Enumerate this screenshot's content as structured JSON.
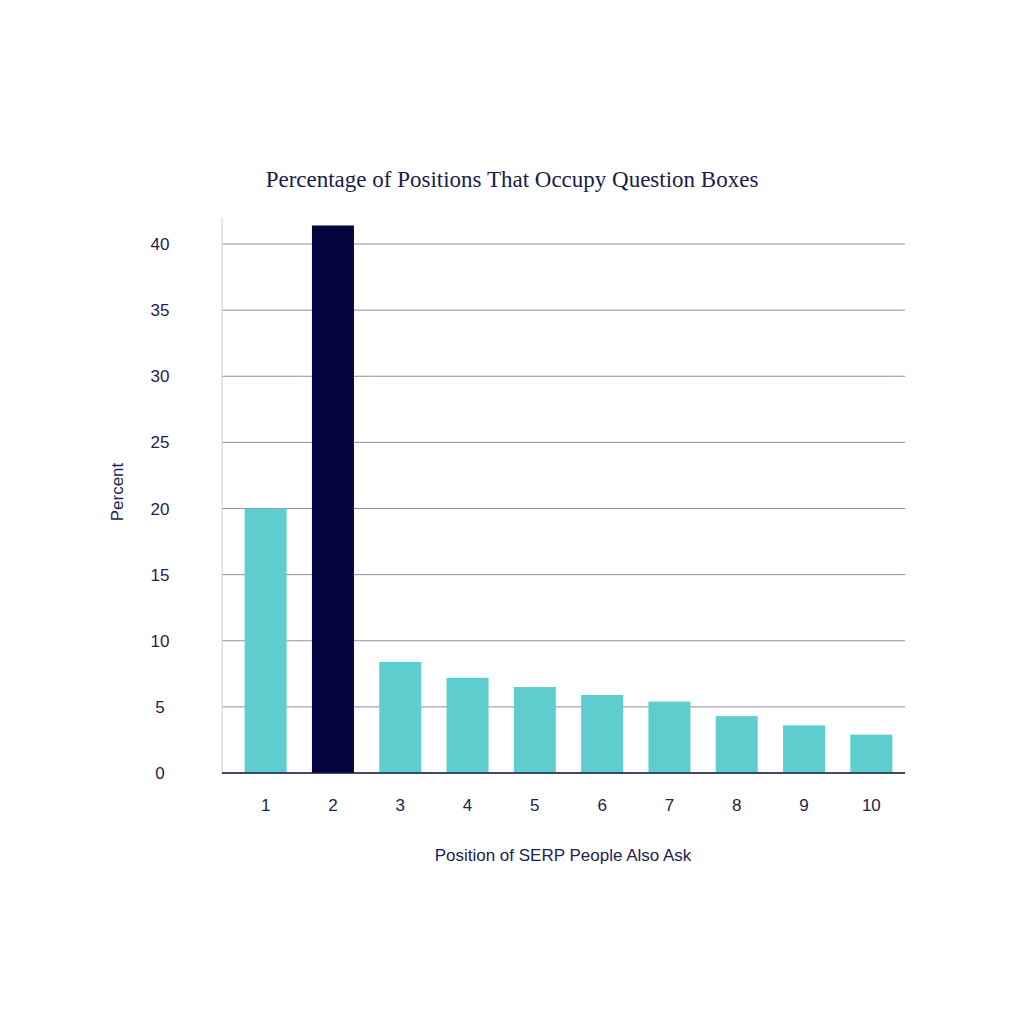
{
  "chart_data": {
    "type": "bar",
    "title": "Percentage of Positions That Occupy Question Boxes",
    "x_label": "Position of SERP People Also Ask",
    "y_label": "Percent",
    "categories": [
      "1",
      "2",
      "3",
      "4",
      "5",
      "6",
      "7",
      "8",
      "9",
      "10"
    ],
    "values": [
      20,
      41.4,
      8.4,
      7.2,
      6.5,
      5.9,
      5.4,
      4.3,
      3.6,
      2.9
    ],
    "colors": [
      "#5ecdcd",
      "#03033f",
      "#5ecdcd",
      "#5ecdcd",
      "#5ecdcd",
      "#5ecdcd",
      "#5ecdcd",
      "#5ecdcd",
      "#5ecdcd",
      "#5ecdcd"
    ],
    "ylim": [
      0,
      42
    ],
    "yticks": [
      0,
      5,
      10,
      15,
      20,
      25,
      30,
      35,
      40
    ],
    "grid": true
  }
}
